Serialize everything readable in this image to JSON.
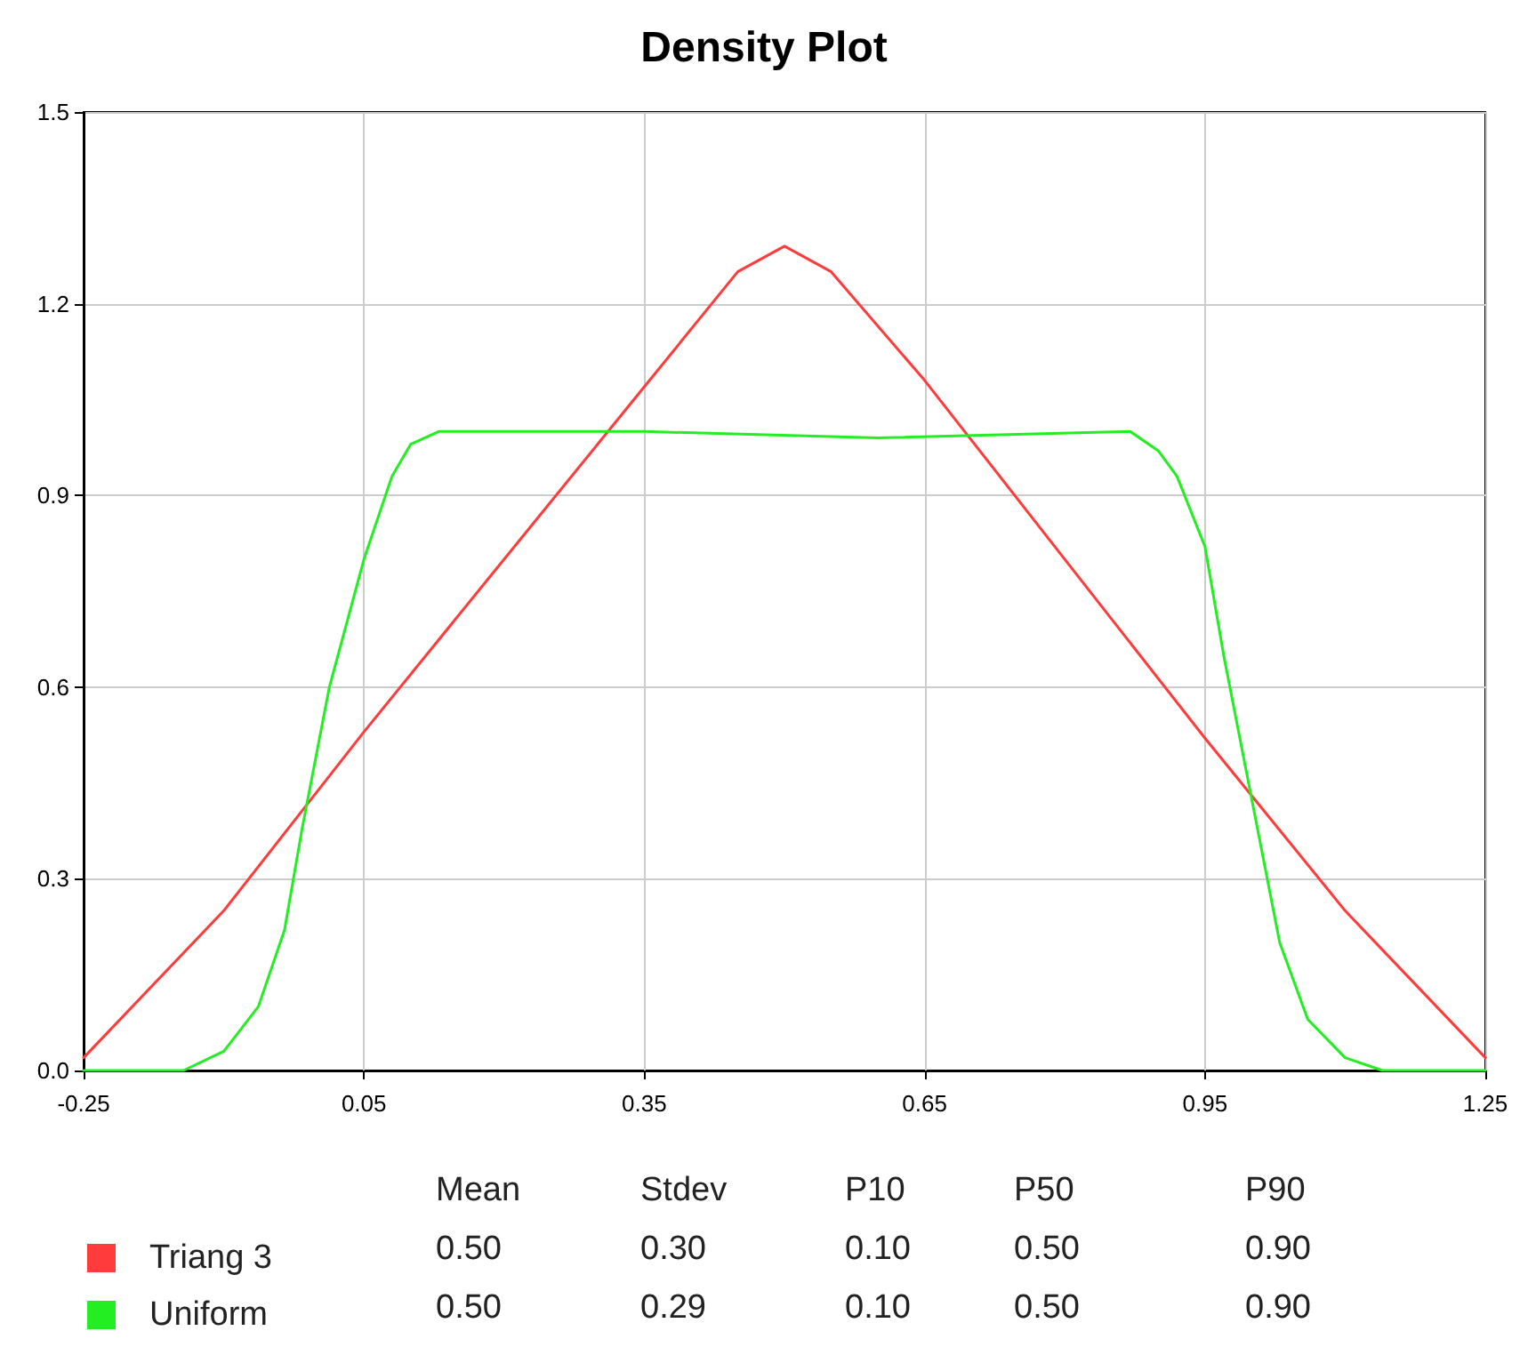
{
  "chart_data": {
    "type": "line",
    "title": "Density Plot",
    "xlim": [
      -0.25,
      1.25
    ],
    "xticks": [
      -0.25,
      0.05,
      0.35,
      0.65,
      0.95,
      1.25
    ],
    "ylim": [
      0,
      1.5
    ],
    "yticks": [
      {
        "value": 0,
        "label": "0.0"
      },
      {
        "value": 0.3,
        "label": "0.3"
      },
      {
        "value": 0.6,
        "label": "0.6"
      },
      {
        "value": 0.9,
        "label": "0.9"
      },
      {
        "value": 1.2,
        "label": "1.2"
      },
      {
        "value": 1.5,
        "label": "1.5"
      }
    ],
    "grid": true,
    "legend": "bottom left",
    "marker": "none",
    "line_style": "solid",
    "series": [
      {
        "name": "Triang 3",
        "color": "#ff3b3b",
        "x": [
          -0.25,
          -0.1,
          0.05,
          0.2,
          0.35,
          0.45,
          0.5,
          0.55,
          0.65,
          0.8,
          0.95,
          1.1,
          1.25
        ],
        "values": [
          0.02,
          0.25,
          0.53,
          0.8,
          1.07,
          1.25,
          1.29,
          1.25,
          1.08,
          0.8,
          0.52,
          0.25,
          0.02
        ]
      },
      {
        "name": "Uniform",
        "color": "#22ee22",
        "x": [
          -0.25,
          -0.143,
          -0.1,
          -0.063,
          -0.035,
          -0.016,
          0.013,
          0.05,
          0.08,
          0.1,
          0.13,
          0.35,
          0.6,
          0.87,
          0.9,
          0.92,
          0.95,
          0.97,
          0.99,
          1.01,
          1.03,
          1.06,
          1.1,
          1.14,
          1.25
        ],
        "values": [
          0,
          0,
          0.03,
          0.1,
          0.22,
          0.38,
          0.6,
          0.8,
          0.93,
          0.98,
          1.0,
          1.0,
          0.99,
          1.0,
          0.97,
          0.93,
          0.82,
          0.65,
          0.5,
          0.35,
          0.2,
          0.08,
          0.02,
          0,
          0
        ]
      }
    ],
    "annotations": [
      "Mean",
      "Stdev",
      "P10",
      "P50",
      "P90",
      "0.50",
      "0.30",
      "0.10",
      "0.50",
      "0.90",
      "0.50",
      "0.29",
      "0.10",
      "0.50",
      "0.90"
    ]
  }
}
